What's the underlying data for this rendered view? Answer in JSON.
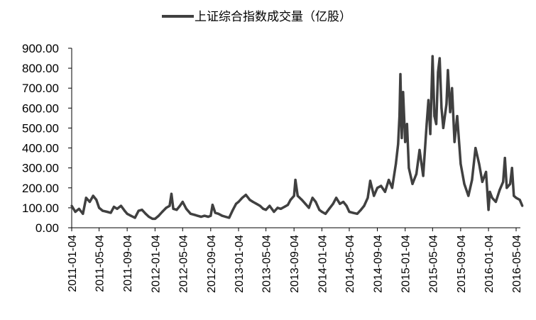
{
  "chart_data": {
    "type": "line",
    "title": "",
    "xlabel": "",
    "ylabel": "",
    "ylim": [
      0,
      900
    ],
    "y_ticks": [
      "0.00",
      "100.00",
      "200.00",
      "300.00",
      "400.00",
      "500.00",
      "600.00",
      "700.00",
      "800.00",
      "900.00"
    ],
    "x_ticks": [
      "2011-01-04",
      "2011-05-04",
      "2011-09-04",
      "2012-01-04",
      "2012-05-04",
      "2012-09-04",
      "2013-01-04",
      "2013-05-04",
      "2013-09-04",
      "2014-01-04",
      "2014-05-04",
      "2014-09-04",
      "2015-01-04",
      "2015-05-04",
      "2015-09-04",
      "2016-01-04",
      "2016-05-04"
    ],
    "x_range": [
      "2011-01-04",
      "2016-05-31"
    ],
    "legend_position": "top-center",
    "grid": false,
    "series": [
      {
        "name": "上证综合指数成交量（亿股）",
        "color": "#404040",
        "points": [
          [
            "2011-01-04",
            110
          ],
          [
            "2011-01-20",
            80
          ],
          [
            "2011-02-05",
            95
          ],
          [
            "2011-02-22",
            70
          ],
          [
            "2011-03-08",
            150
          ],
          [
            "2011-03-24",
            130
          ],
          [
            "2011-04-08",
            160
          ],
          [
            "2011-04-22",
            140
          ],
          [
            "2011-05-04",
            100
          ],
          [
            "2011-05-20",
            85
          ],
          [
            "2011-06-08",
            80
          ],
          [
            "2011-06-24",
            75
          ],
          [
            "2011-07-08",
            105
          ],
          [
            "2011-07-22",
            95
          ],
          [
            "2011-08-08",
            110
          ],
          [
            "2011-08-24",
            85
          ],
          [
            "2011-09-04",
            70
          ],
          [
            "2011-09-20",
            60
          ],
          [
            "2011-10-08",
            50
          ],
          [
            "2011-10-24",
            85
          ],
          [
            "2011-11-08",
            90
          ],
          [
            "2011-11-24",
            70
          ],
          [
            "2011-12-08",
            55
          ],
          [
            "2011-12-24",
            45
          ],
          [
            "2012-01-04",
            45
          ],
          [
            "2012-01-20",
            60
          ],
          [
            "2012-02-05",
            80
          ],
          [
            "2012-02-22",
            100
          ],
          [
            "2012-03-08",
            110
          ],
          [
            "2012-03-16",
            170
          ],
          [
            "2012-03-24",
            95
          ],
          [
            "2012-04-08",
            90
          ],
          [
            "2012-04-22",
            110
          ],
          [
            "2012-05-04",
            130
          ],
          [
            "2012-05-20",
            95
          ],
          [
            "2012-06-08",
            70
          ],
          [
            "2012-06-24",
            65
          ],
          [
            "2012-07-08",
            60
          ],
          [
            "2012-07-24",
            55
          ],
          [
            "2012-08-08",
            60
          ],
          [
            "2012-08-24",
            55
          ],
          [
            "2012-09-04",
            60
          ],
          [
            "2012-09-12",
            115
          ],
          [
            "2012-09-24",
            75
          ],
          [
            "2012-10-08",
            70
          ],
          [
            "2012-10-24",
            60
          ],
          [
            "2012-11-08",
            55
          ],
          [
            "2012-11-24",
            50
          ],
          [
            "2012-12-08",
            85
          ],
          [
            "2012-12-24",
            120
          ],
          [
            "2013-01-04",
            130
          ],
          [
            "2013-01-20",
            150
          ],
          [
            "2013-02-05",
            165
          ],
          [
            "2013-02-22",
            140
          ],
          [
            "2013-03-08",
            130
          ],
          [
            "2013-03-24",
            120
          ],
          [
            "2013-04-08",
            110
          ],
          [
            "2013-04-22",
            95
          ],
          [
            "2013-05-04",
            90
          ],
          [
            "2013-05-20",
            110
          ],
          [
            "2013-06-08",
            80
          ],
          [
            "2013-06-24",
            100
          ],
          [
            "2013-07-08",
            95
          ],
          [
            "2013-07-24",
            105
          ],
          [
            "2013-08-08",
            115
          ],
          [
            "2013-08-20",
            140
          ],
          [
            "2013-09-04",
            160
          ],
          [
            "2013-09-10",
            240
          ],
          [
            "2013-09-20",
            160
          ],
          [
            "2013-10-08",
            140
          ],
          [
            "2013-10-24",
            120
          ],
          [
            "2013-11-08",
            100
          ],
          [
            "2013-11-24",
            150
          ],
          [
            "2013-12-08",
            130
          ],
          [
            "2013-12-24",
            90
          ],
          [
            "2014-01-04",
            80
          ],
          [
            "2014-01-20",
            70
          ],
          [
            "2014-02-05",
            95
          ],
          [
            "2014-02-22",
            120
          ],
          [
            "2014-03-08",
            150
          ],
          [
            "2014-03-24",
            120
          ],
          [
            "2014-04-08",
            130
          ],
          [
            "2014-04-22",
            110
          ],
          [
            "2014-05-04",
            80
          ],
          [
            "2014-05-20",
            75
          ],
          [
            "2014-06-08",
            70
          ],
          [
            "2014-06-24",
            90
          ],
          [
            "2014-07-08",
            110
          ],
          [
            "2014-07-24",
            150
          ],
          [
            "2014-08-04",
            235
          ],
          [
            "2014-08-20",
            160
          ],
          [
            "2014-09-04",
            200
          ],
          [
            "2014-09-20",
            210
          ],
          [
            "2014-10-08",
            180
          ],
          [
            "2014-10-24",
            240
          ],
          [
            "2014-11-08",
            200
          ],
          [
            "2014-11-24",
            320
          ],
          [
            "2014-12-04",
            420
          ],
          [
            "2014-12-10",
            560
          ],
          [
            "2014-12-14",
            770
          ],
          [
            "2014-12-20",
            450
          ],
          [
            "2014-12-26",
            680
          ],
          [
            "2015-01-04",
            430
          ],
          [
            "2015-01-12",
            520
          ],
          [
            "2015-01-20",
            300
          ],
          [
            "2015-02-05",
            220
          ],
          [
            "2015-02-22",
            270
          ],
          [
            "2015-03-08",
            390
          ],
          [
            "2015-03-24",
            260
          ],
          [
            "2015-04-08",
            520
          ],
          [
            "2015-04-16",
            640
          ],
          [
            "2015-04-24",
            470
          ],
          [
            "2015-05-04",
            860
          ],
          [
            "2015-05-12",
            560
          ],
          [
            "2015-05-20",
            520
          ],
          [
            "2015-05-28",
            780
          ],
          [
            "2015-06-04",
            850
          ],
          [
            "2015-06-12",
            600
          ],
          [
            "2015-06-20",
            500
          ],
          [
            "2015-07-04",
            620
          ],
          [
            "2015-07-10",
            790
          ],
          [
            "2015-07-20",
            580
          ],
          [
            "2015-07-28",
            700
          ],
          [
            "2015-08-08",
            430
          ],
          [
            "2015-08-20",
            560
          ],
          [
            "2015-09-04",
            320
          ],
          [
            "2015-09-20",
            220
          ],
          [
            "2015-10-08",
            160
          ],
          [
            "2015-10-24",
            240
          ],
          [
            "2015-11-08",
            400
          ],
          [
            "2015-11-24",
            320
          ],
          [
            "2015-12-08",
            230
          ],
          [
            "2015-12-24",
            280
          ],
          [
            "2016-01-04",
            90
          ],
          [
            "2016-01-10",
            180
          ],
          [
            "2016-01-20",
            150
          ],
          [
            "2016-02-05",
            130
          ],
          [
            "2016-02-22",
            190
          ],
          [
            "2016-03-08",
            230
          ],
          [
            "2016-03-16",
            350
          ],
          [
            "2016-03-24",
            200
          ],
          [
            "2016-04-08",
            220
          ],
          [
            "2016-04-16",
            300
          ],
          [
            "2016-04-24",
            160
          ],
          [
            "2016-05-04",
            150
          ],
          [
            "2016-05-20",
            140
          ],
          [
            "2016-05-31",
            110
          ]
        ]
      }
    ]
  }
}
